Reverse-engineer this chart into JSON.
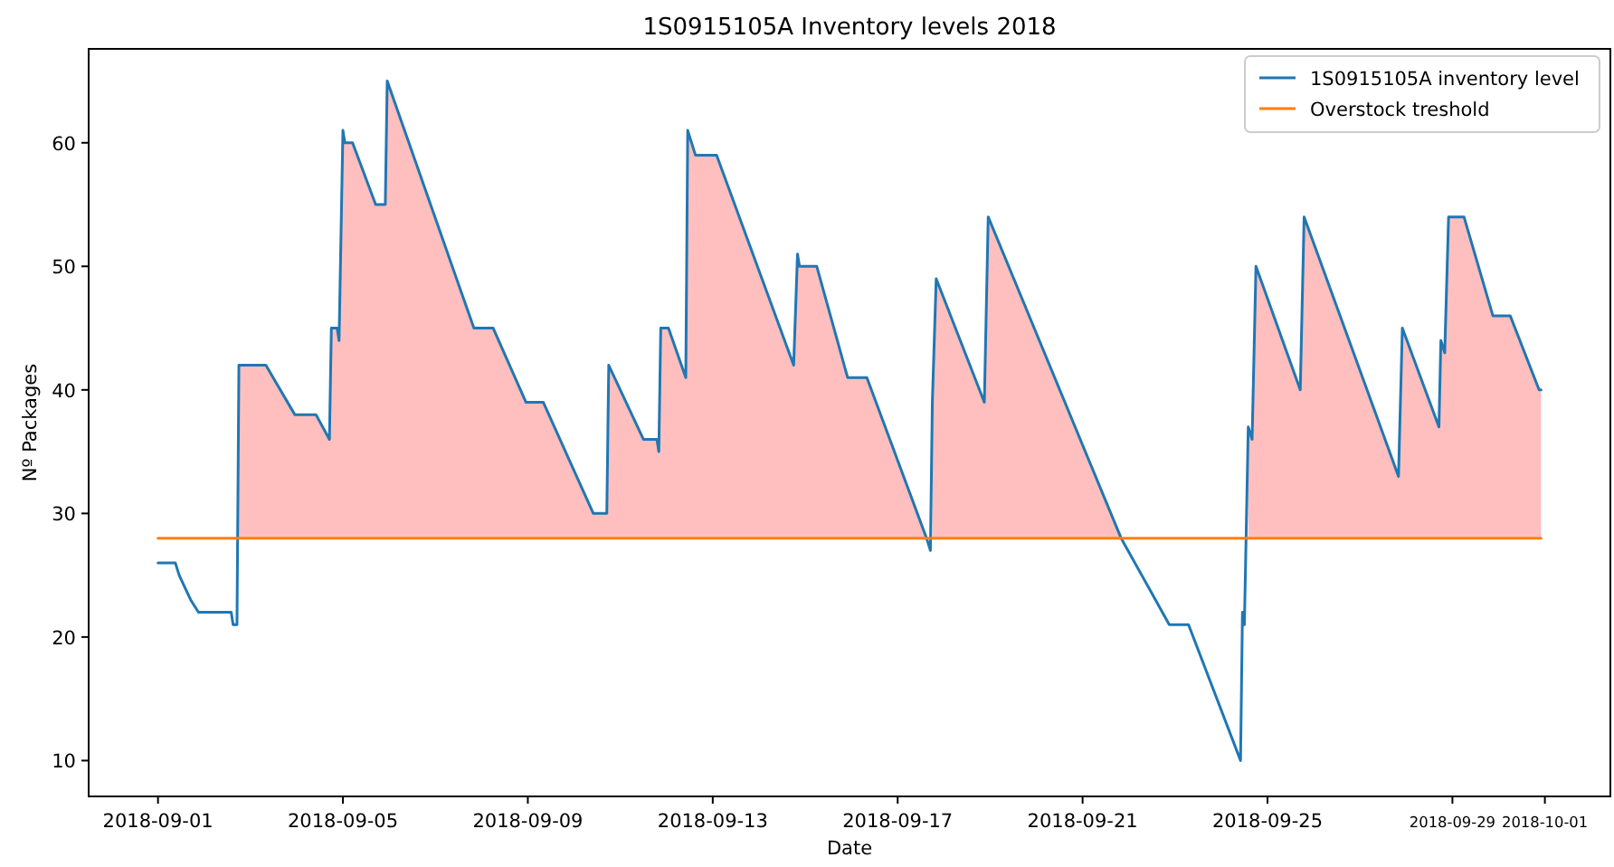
{
  "chart_data": {
    "type": "line",
    "title": "1S0915105A Inventory levels 2018",
    "xlabel": "Date",
    "ylabel": "Nº Packages",
    "xlim": [
      "2018-08-30T12:00",
      "2018-10-02T10:00"
    ],
    "xticks": [
      "2018-09-01",
      "2018-09-05",
      "2018-09-09",
      "2018-09-13",
      "2018-09-17",
      "2018-09-21",
      "2018-09-25",
      "2018-09-29",
      "2018-10-01"
    ],
    "ylim": [
      7.1,
      67.6
    ],
    "yticks": [
      10,
      20,
      30,
      40,
      50,
      60
    ],
    "grid": false,
    "legend": "top right",
    "series": [
      {
        "name": "1S0915105A inventory level",
        "color": "#1f77b4",
        "x": [
          "2018-09-01T00:00",
          "2018-09-01T09:00",
          "2018-09-01T11:00",
          "2018-09-01T14:00",
          "2018-09-01T17:00",
          "2018-09-01T21:00",
          "2018-09-02T14:00",
          "2018-09-02T15:00",
          "2018-09-02T17:00",
          "2018-09-02T18:00",
          "2018-09-03T08:00",
          "2018-09-03T23:00",
          "2018-09-04T10:00",
          "2018-09-04T17:00",
          "2018-09-04T18:00",
          "2018-09-04T21:00",
          "2018-09-04T22:00",
          "2018-09-05T00:00",
          "2018-09-05T01:00",
          "2018-09-05T05:00",
          "2018-09-05T17:00",
          "2018-09-05T22:00",
          "2018-09-05T23:00",
          "2018-09-07T20:00",
          "2018-09-08T06:00",
          "2018-09-08T23:00",
          "2018-09-09T08:00",
          "2018-09-10T10:00",
          "2018-09-10T17:00",
          "2018-09-10T18:00",
          "2018-09-11T12:00",
          "2018-09-11T19:00",
          "2018-09-11T20:00",
          "2018-09-11T21:00",
          "2018-09-12T01:00",
          "2018-09-12T10:00",
          "2018-09-12T11:00",
          "2018-09-12T15:00",
          "2018-09-13T02:00",
          "2018-09-14T18:00",
          "2018-09-14T20:00",
          "2018-09-14T21:00",
          "2018-09-15T06:00",
          "2018-09-15T22:00",
          "2018-09-16T08:00",
          "2018-09-17T15:00",
          "2018-09-17T17:00",
          "2018-09-17T18:00",
          "2018-09-17T20:00",
          "2018-09-18T21:00",
          "2018-09-18T23:00",
          "2018-09-21T20:00",
          "2018-09-22T21:00",
          "2018-09-23T07:00",
          "2018-09-24T10:00",
          "2018-09-24T11:00",
          "2018-09-24T12:00",
          "2018-09-24T14:00",
          "2018-09-24T16:00",
          "2018-09-24T18:00",
          "2018-09-25T17:00",
          "2018-09-25T19:00",
          "2018-09-27T20:00",
          "2018-09-27T22:00",
          "2018-09-28T17:00",
          "2018-09-28T18:00",
          "2018-09-28T20:00",
          "2018-09-28T22:00",
          "2018-09-29T06:00",
          "2018-09-29T21:00",
          "2018-09-30T06:00",
          "2018-09-30T21:00",
          "2018-09-30T22:00"
        ],
        "values": [
          26,
          26,
          25,
          24,
          23,
          22,
          22,
          21,
          21,
          42,
          42,
          38,
          38,
          36,
          45,
          45,
          44,
          61,
          60,
          60,
          55,
          55,
          65,
          45,
          45,
          39,
          39,
          30,
          30,
          42,
          36,
          36,
          35,
          45,
          45,
          41,
          61,
          59,
          59,
          42,
          51,
          50,
          50,
          41,
          41,
          28,
          27,
          39,
          49,
          39,
          54,
          28,
          21,
          21,
          10,
          22,
          21,
          37,
          36,
          50,
          40,
          54,
          33,
          45,
          37,
          44,
          43,
          54,
          54,
          46,
          46,
          40,
          40
        ],
        "lower": [
          null,
          null,
          null,
          null,
          null,
          null,
          null,
          null,
          null,
          28,
          28,
          28,
          28,
          28,
          28,
          28,
          28,
          28,
          28,
          28,
          28,
          28,
          28,
          28,
          28,
          28,
          28,
          28,
          28,
          28,
          28,
          28,
          28,
          28,
          28,
          28,
          28,
          28,
          28,
          28,
          28,
          28,
          28,
          28,
          28,
          28,
          null,
          28,
          28,
          28,
          28,
          28,
          null,
          null,
          null,
          null,
          null,
          28,
          28,
          28,
          28,
          28,
          28,
          28,
          28,
          28,
          28,
          28,
          28,
          28,
          28,
          28,
          28
        ],
        "upper": [
          null,
          null,
          null,
          null,
          null,
          null,
          null,
          null,
          null,
          42,
          42,
          38,
          38,
          36,
          45,
          45,
          44,
          61,
          60,
          60,
          55,
          55,
          65,
          45,
          45,
          39,
          39,
          30,
          30,
          42,
          36,
          36,
          35,
          45,
          45,
          41,
          61,
          59,
          59,
          42,
          51,
          50,
          50,
          41,
          41,
          28,
          null,
          39,
          49,
          39,
          54,
          28,
          null,
          null,
          null,
          null,
          null,
          37,
          36,
          50,
          40,
          54,
          33,
          45,
          37,
          44,
          43,
          54,
          54,
          46,
          46,
          40,
          40
        ]
      },
      {
        "name": "Overstock treshold",
        "color": "#ff7f0e",
        "x": [
          "2018-09-01T00:00",
          "2018-09-30T22:00"
        ],
        "values": [
          28,
          28
        ]
      }
    ]
  }
}
